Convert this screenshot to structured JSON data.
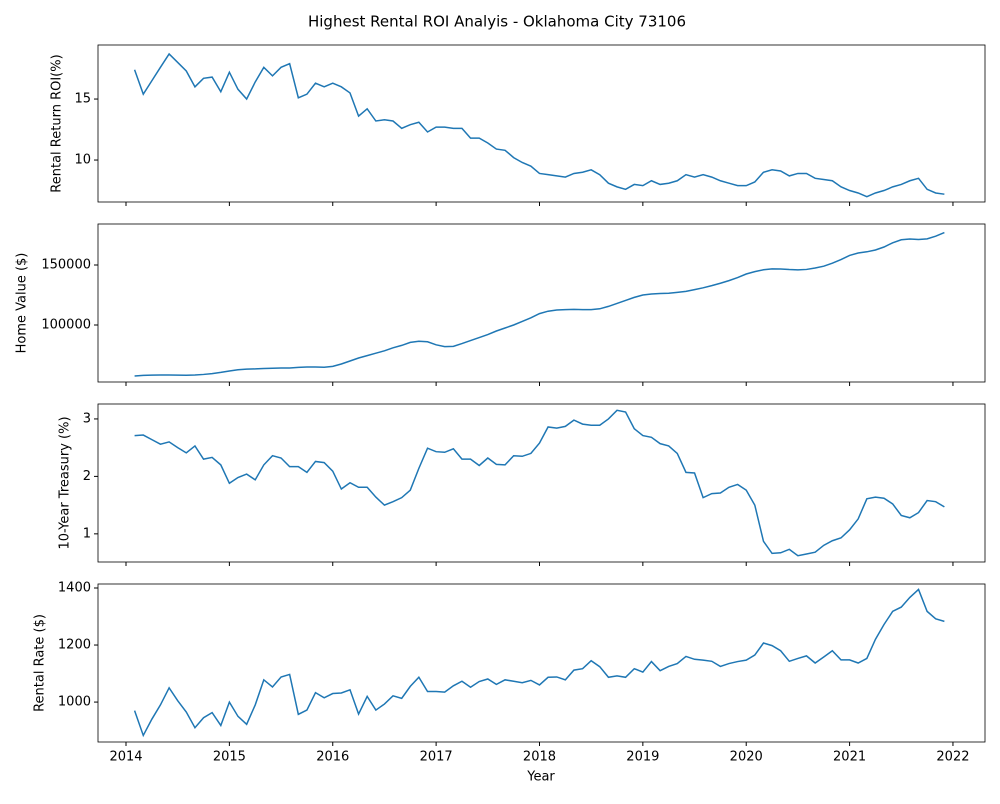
{
  "chart_data": {
    "type": "line",
    "title": "Highest Rental ROI Analyis - Oklahoma City 73106",
    "xlabel": "Year",
    "xlim": [
      2013.729,
      2022.31
    ],
    "xticks": [
      2014,
      2015,
      2016,
      2017,
      2018,
      2019,
      2020,
      2021,
      2022
    ],
    "x": [
      2014.083,
      2014.167,
      2014.25,
      2014.333,
      2014.417,
      2014.5,
      2014.583,
      2014.667,
      2014.75,
      2014.833,
      2014.917,
      2015,
      2015.083,
      2015.167,
      2015.25,
      2015.333,
      2015.417,
      2015.5,
      2015.583,
      2015.667,
      2015.75,
      2015.833,
      2015.917,
      2016,
      2016.083,
      2016.167,
      2016.25,
      2016.333,
      2016.417,
      2016.5,
      2016.583,
      2016.667,
      2016.75,
      2016.833,
      2016.917,
      2017,
      2017.083,
      2017.167,
      2017.25,
      2017.333,
      2017.417,
      2017.5,
      2017.583,
      2017.667,
      2017.75,
      2017.833,
      2017.917,
      2018,
      2018.083,
      2018.167,
      2018.25,
      2018.333,
      2018.417,
      2018.5,
      2018.583,
      2018.667,
      2018.75,
      2018.833,
      2018.917,
      2019,
      2019.083,
      2019.167,
      2019.25,
      2019.333,
      2019.417,
      2019.5,
      2019.583,
      2019.667,
      2019.75,
      2019.833,
      2019.917,
      2020,
      2020.083,
      2020.167,
      2020.25,
      2020.333,
      2020.417,
      2020.5,
      2020.583,
      2020.667,
      2020.75,
      2020.833,
      2020.917,
      2021,
      2021.083,
      2021.167,
      2021.25,
      2021.333,
      2021.417,
      2021.5,
      2021.583,
      2021.667,
      2021.75,
      2021.833,
      2021.917
    ],
    "panels": [
      {
        "ylabel": "Rental Return ROI(%)",
        "ylim": [
          6.56,
          19.43
        ],
        "yticks": [
          10,
          15
        ],
        "color": "#1f77b4",
        "values": [
          17.4,
          15.4,
          16.5,
          17.6,
          18.7,
          18.0,
          17.3,
          16.0,
          16.7,
          16.8,
          15.6,
          17.2,
          15.8,
          15.0,
          16.4,
          17.6,
          16.9,
          17.6,
          17.9,
          15.1,
          15.4,
          16.3,
          16.0,
          16.3,
          16.0,
          15.5,
          13.6,
          14.2,
          13.2,
          13.3,
          13.2,
          12.6,
          12.9,
          13.1,
          12.3,
          12.7,
          12.7,
          12.6,
          12.6,
          11.8,
          11.8,
          11.4,
          10.9,
          10.8,
          10.2,
          9.8,
          9.5,
          8.9,
          8.8,
          8.7,
          8.6,
          8.9,
          9.0,
          9.2,
          8.8,
          8.1,
          7.8,
          7.6,
          8.0,
          7.9,
          8.3,
          8.0,
          8.1,
          8.3,
          8.8,
          8.6,
          8.8,
          8.6,
          8.3,
          8.1,
          7.9,
          7.9,
          8.2,
          9.0,
          9.2,
          9.1,
          8.7,
          8.9,
          8.9,
          8.5,
          8.4,
          8.3,
          7.8,
          7.5,
          7.3,
          7.0,
          7.3,
          7.5,
          7.8,
          8.0,
          8.3,
          8.5,
          7.6,
          7.3,
          7.2
        ]
      },
      {
        "ylabel": "Home Value ($)",
        "ylim": [
          52500,
          184167
        ],
        "yticks": [
          100000,
          150000
        ],
        "color": "#1f77b4",
        "values": [
          57500,
          58000,
          58200,
          58300,
          58300,
          58200,
          58100,
          58300,
          58800,
          59500,
          60500,
          61700,
          62700,
          63200,
          63400,
          63800,
          64000,
          64200,
          64200,
          64700,
          65000,
          65000,
          64800,
          65500,
          67500,
          70000,
          72500,
          74500,
          76500,
          78500,
          81000,
          83000,
          85500,
          86500,
          86000,
          83500,
          82000,
          82200,
          84500,
          87000,
          89500,
          92000,
          95000,
          97500,
          100000,
          103000,
          106000,
          109500,
          111500,
          112500,
          112800,
          113000,
          112800,
          112800,
          113500,
          115500,
          118000,
          120500,
          123000,
          125000,
          125800,
          126200,
          126500,
          127200,
          128000,
          129500,
          131000,
          132800,
          134800,
          137000,
          139500,
          142500,
          144500,
          146000,
          146800,
          146700,
          146200,
          145900,
          146300,
          147500,
          149000,
          151500,
          154500,
          158000,
          160000,
          161000,
          162500,
          165000,
          168500,
          171000,
          171700,
          171300,
          171800,
          174000,
          177000
        ]
      },
      {
        "ylabel": "10-Year Treasury (%)",
        "ylim": [
          0.51,
          3.26
        ],
        "yticks": [
          1,
          2,
          3
        ],
        "color": "#1f77b4",
        "values": [
          2.71,
          2.72,
          2.64,
          2.56,
          2.6,
          2.5,
          2.41,
          2.53,
          2.3,
          2.33,
          2.2,
          1.88,
          1.98,
          2.04,
          1.94,
          2.2,
          2.36,
          2.32,
          2.17,
          2.17,
          2.07,
          2.26,
          2.24,
          2.09,
          1.78,
          1.89,
          1.81,
          1.81,
          1.64,
          1.5,
          1.56,
          1.63,
          1.76,
          2.14,
          2.49,
          2.43,
          2.42,
          2.48,
          2.3,
          2.3,
          2.19,
          2.32,
          2.21,
          2.2,
          2.36,
          2.35,
          2.4,
          2.58,
          2.86,
          2.84,
          2.87,
          2.98,
          2.91,
          2.89,
          2.89,
          3.0,
          3.15,
          3.12,
          2.83,
          2.71,
          2.68,
          2.57,
          2.53,
          2.4,
          2.07,
          2.06,
          1.63,
          1.7,
          1.71,
          1.81,
          1.86,
          1.76,
          1.5,
          0.87,
          0.66,
          0.67,
          0.73,
          0.62,
          0.65,
          0.68,
          0.8,
          0.88,
          0.93,
          1.07,
          1.26,
          1.61,
          1.64,
          1.62,
          1.52,
          1.32,
          1.28,
          1.37,
          1.58,
          1.56,
          1.47
        ]
      },
      {
        "ylabel": "Rental Rate ($)",
        "ylim": [
          860,
          1414
        ],
        "yticks": [
          1000,
          1200,
          1400
        ],
        "color": "#1f77b4",
        "values": [
          970,
          883,
          940,
          990,
          1050,
          1005,
          965,
          910,
          945,
          963,
          918,
          1000,
          950,
          922,
          990,
          1078,
          1053,
          1088,
          1097,
          957,
          972,
          1033,
          1015,
          1030,
          1032,
          1043,
          958,
          1020,
          972,
          993,
          1022,
          1013,
          1055,
          1087,
          1037,
          1037,
          1035,
          1057,
          1073,
          1052,
          1072,
          1081,
          1062,
          1078,
          1073,
          1068,
          1076,
          1060,
          1087,
          1088,
          1078,
          1112,
          1117,
          1145,
          1124,
          1087,
          1092,
          1087,
          1117,
          1105,
          1142,
          1110,
          1125,
          1135,
          1160,
          1150,
          1147,
          1143,
          1125,
          1135,
          1142,
          1147,
          1165,
          1207,
          1198,
          1180,
          1143,
          1153,
          1162,
          1137,
          1158,
          1180,
          1148,
          1148,
          1137,
          1153,
          1220,
          1272,
          1318,
          1333,
          1367,
          1395,
          1318,
          1292,
          1283
        ]
      }
    ]
  }
}
